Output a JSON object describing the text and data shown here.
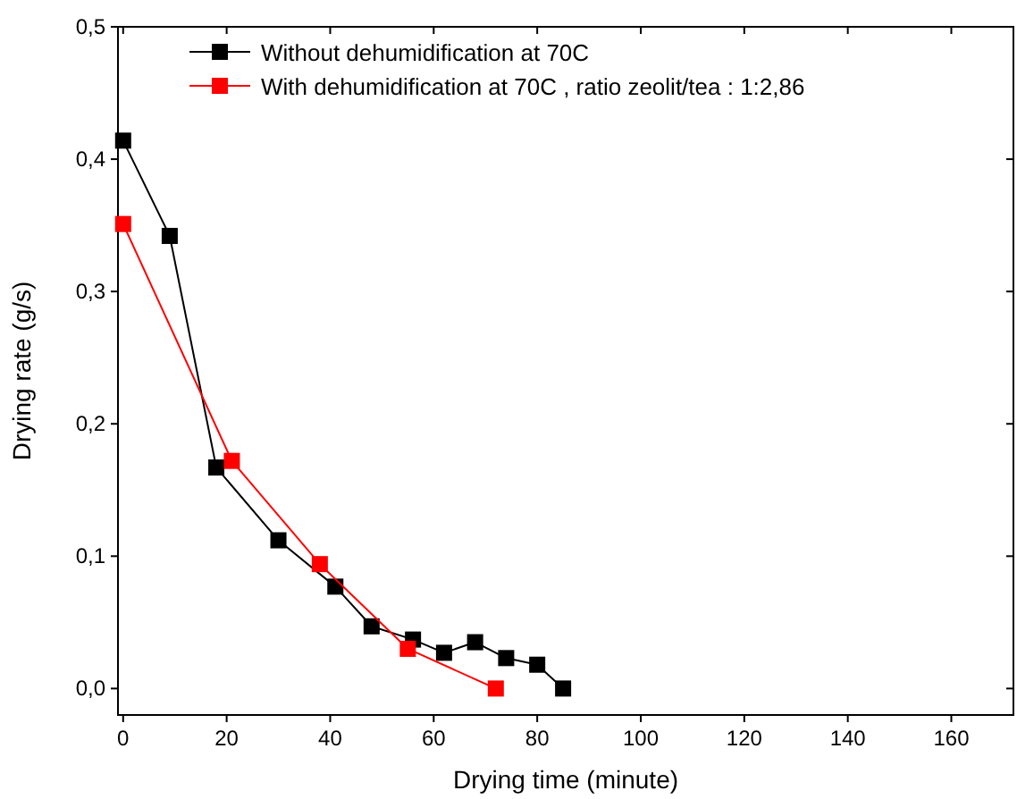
{
  "chart_data": {
    "type": "line",
    "xlabel": "Drying time (minute)",
    "ylabel": "Drying rate (g/s)",
    "xlim": [
      -1,
      172
    ],
    "xticks": [
      0,
      20,
      40,
      60,
      80,
      100,
      120,
      140,
      160
    ],
    "ylim": [
      -0.02,
      0.5
    ],
    "yticks": [
      {
        "value": 0,
        "label": "0,0"
      },
      {
        "value": 0.1,
        "label": "0,1"
      },
      {
        "value": 0.2,
        "label": "0,2"
      },
      {
        "value": 0.3,
        "label": "0,3"
      },
      {
        "value": 0.4,
        "label": "0,4"
      },
      {
        "value": 0.5,
        "label": "0,5"
      }
    ],
    "marker": "square",
    "legend": "top",
    "grid": false,
    "series": [
      {
        "name": "Without dehumidification at 70C",
        "color": "#000000",
        "x": [
          0,
          9,
          18,
          30,
          41,
          48,
          56,
          62,
          68,
          74,
          80,
          85
        ],
        "values": [
          0.414,
          0.342,
          0.167,
          0.112,
          0.077,
          0.047,
          0.037,
          0.027,
          0.035,
          0.023,
          0.018,
          0
        ]
      },
      {
        "name": "With dehumidification at 70C , ratio zeolit/tea : 1:2,86",
        "color": "#ff0000",
        "x": [
          0,
          21,
          38,
          55,
          72
        ],
        "values": [
          0.351,
          0.172,
          0.094,
          0.03,
          0
        ]
      }
    ]
  }
}
